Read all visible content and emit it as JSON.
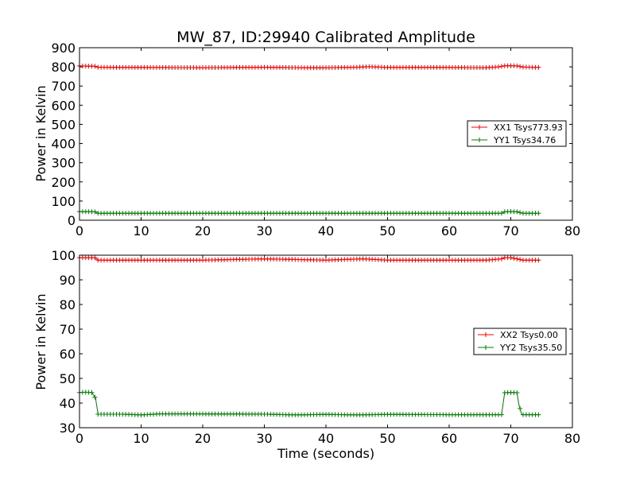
{
  "chart_data": [
    {
      "type": "line",
      "title": "MW_87, ID:29940 Calibrated Amplitude",
      "xlabel": "",
      "ylabel": "Power in Kelvin",
      "xlim": [
        0,
        80
      ],
      "ylim": [
        0,
        900
      ],
      "xticks": [
        0,
        10,
        20,
        30,
        40,
        50,
        60,
        70,
        80
      ],
      "yticks": [
        0,
        100,
        200,
        300,
        400,
        500,
        600,
        700,
        800,
        900
      ],
      "grid": false,
      "legend_position": "right",
      "marker": "+",
      "series": [
        {
          "name": "XX1 Tsys773.93",
          "color": "#ff0000",
          "points": [
            [
              0,
              805
            ],
            [
              2.5,
              803
            ],
            [
              3,
              798
            ],
            [
              10,
              797
            ],
            [
              20,
              796
            ],
            [
              30,
              798
            ],
            [
              38,
              795
            ],
            [
              45,
              798
            ],
            [
              47,
              801
            ],
            [
              50,
              797
            ],
            [
              60,
              797
            ],
            [
              66,
              796
            ],
            [
              68,
              800
            ],
            [
              69,
              806
            ],
            [
              70,
              806
            ],
            [
              71,
              805
            ],
            [
              72,
              799
            ],
            [
              74.5,
              797
            ]
          ]
        },
        {
          "name": "YY1 Tsys34.76",
          "color": "#008000",
          "points": [
            [
              0,
              45
            ],
            [
              2.5,
              44
            ],
            [
              3,
              36
            ],
            [
              10,
              36
            ],
            [
              20,
              36
            ],
            [
              30,
              36
            ],
            [
              40,
              36
            ],
            [
              50,
              36
            ],
            [
              60,
              36
            ],
            [
              68.5,
              36
            ],
            [
              69,
              44
            ],
            [
              70,
              45
            ],
            [
              71,
              44
            ],
            [
              72,
              36
            ],
            [
              74.5,
              36
            ]
          ]
        }
      ]
    },
    {
      "type": "line",
      "title": "",
      "xlabel": "Time (seconds)",
      "ylabel": "Power in Kelvin",
      "xlim": [
        0,
        80
      ],
      "ylim": [
        30,
        100
      ],
      "xticks": [
        0,
        10,
        20,
        30,
        40,
        50,
        60,
        70,
        80
      ],
      "yticks": [
        30,
        40,
        50,
        60,
        70,
        80,
        90,
        100
      ],
      "grid": false,
      "legend_position": "right",
      "marker": "+",
      "series": [
        {
          "name": "XX2 Tsys0.00",
          "color": "#ff0000",
          "points": [
            [
              0,
              99
            ],
            [
              2.5,
              99
            ],
            [
              3,
              98
            ],
            [
              10,
              98
            ],
            [
              20,
              98
            ],
            [
              30,
              98.5
            ],
            [
              40,
              98
            ],
            [
              46,
              98.5
            ],
            [
              50,
              98
            ],
            [
              60,
              98
            ],
            [
              66,
              98
            ],
            [
              68.5,
              98.5
            ],
            [
              69,
              99
            ],
            [
              70,
              99
            ],
            [
              71,
              98.5
            ],
            [
              72,
              98
            ],
            [
              74.5,
              98
            ]
          ]
        },
        {
          "name": "YY2 Tsys35.50",
          "color": "#008000",
          "points": [
            [
              0,
              44.3
            ],
            [
              1,
              44.4
            ],
            [
              2,
              44.3
            ],
            [
              2.6,
              42
            ],
            [
              3,
              35.5
            ],
            [
              7,
              35.5
            ],
            [
              10,
              35.2
            ],
            [
              13,
              35.6
            ],
            [
              20,
              35.6
            ],
            [
              30,
              35.5
            ],
            [
              35,
              35.2
            ],
            [
              40,
              35.4
            ],
            [
              45,
              35.2
            ],
            [
              50,
              35.4
            ],
            [
              60,
              35.3
            ],
            [
              68.5,
              35.3
            ],
            [
              69,
              44.2
            ],
            [
              70,
              44.3
            ],
            [
              71,
              44.2
            ],
            [
              71.3,
              39.5
            ],
            [
              71.8,
              35.3
            ],
            [
              74.5,
              35.3
            ]
          ]
        }
      ]
    }
  ]
}
